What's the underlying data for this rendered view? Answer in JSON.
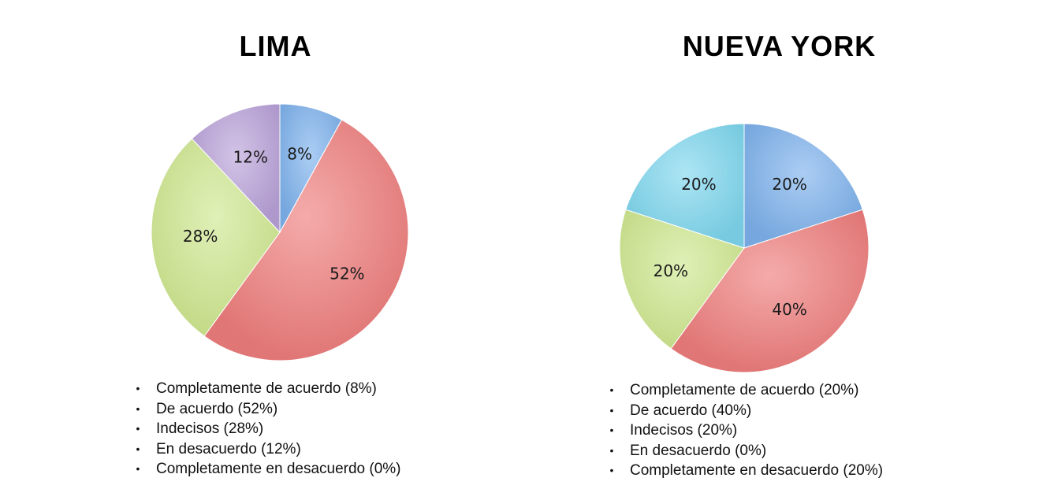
{
  "chart_data": [
    {
      "type": "pie",
      "title": "LIMA",
      "categories": [
        "Completamente de acuerdo",
        "De acuerdo",
        "Indecisos",
        "En desacuerdo",
        "Completamente en desacuerdo"
      ],
      "values": [
        8,
        52,
        28,
        12,
        0
      ],
      "slice_labels": [
        "8%",
        "52%",
        "28%",
        "12%",
        ""
      ],
      "colors": [
        "#7eb2ec",
        "#ee7e7c",
        "#cfe890",
        "#b9a2d9",
        "#7fd7ee"
      ],
      "legend_items": [
        "Completamente de acuerdo (8%)",
        "De acuerdo (52%)",
        "Indecisos (28%)",
        "En desacuerdo (12%)",
        "Completamente en desacuerdo (0%)"
      ],
      "legend_position": "bottom"
    },
    {
      "type": "pie",
      "title": "NUEVA YORK",
      "categories": [
        "Completamente de acuerdo",
        "De acuerdo",
        "Indecisos",
        "En desacuerdo",
        "Completamente en desacuerdo"
      ],
      "values": [
        20,
        40,
        20,
        0,
        20
      ],
      "slice_labels": [
        "20%",
        "40%",
        "20%",
        "",
        "20%"
      ],
      "colors": [
        "#7eb2ec",
        "#ee7e7c",
        "#cfe890",
        "#b9a2d9",
        "#7fd7ee"
      ],
      "legend_items": [
        "Completamente de acuerdo (20%)",
        "De acuerdo (40%)",
        "Indecisos (20%)",
        "En desacuerdo (0%)",
        "Completamente en desacuerdo (20%)"
      ],
      "legend_position": "bottom"
    }
  ],
  "legend_bullet": "•"
}
